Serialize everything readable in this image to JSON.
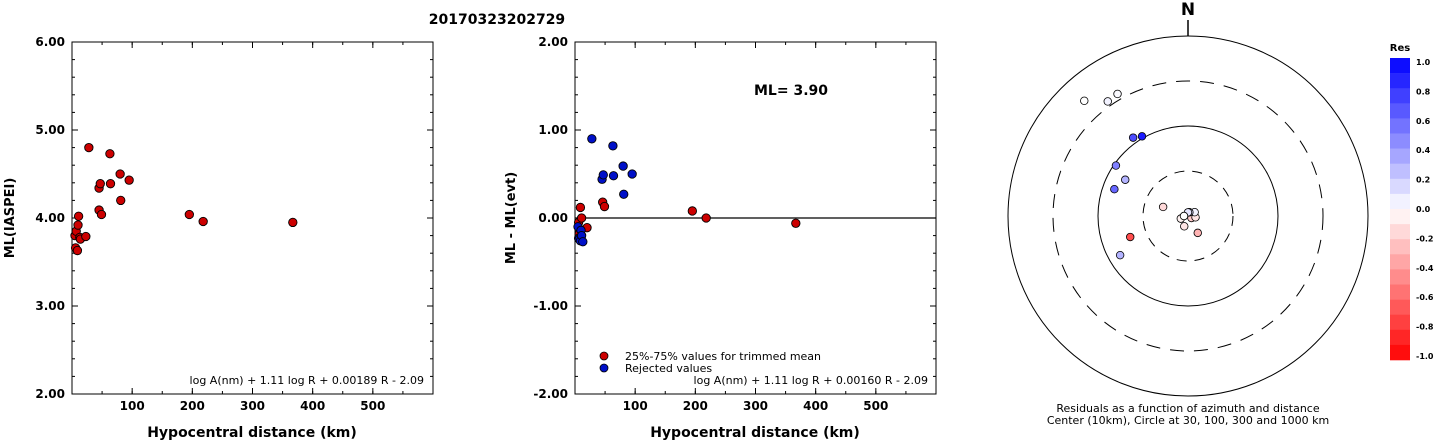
{
  "title": "20170323202729",
  "chart_data": [
    {
      "type": "scatter",
      "ylabel": "ML(IASPEI)",
      "xlabel": "Hypocentral distance (km)",
      "xlim": [
        0,
        600
      ],
      "ylim": [
        2.0,
        6.0
      ],
      "x_ticks": [
        100,
        200,
        300,
        400,
        500
      ],
      "y_ticks": [
        "2.00",
        "3.00",
        "4.00",
        "5.00",
        "6.00"
      ],
      "formula": "log A(nm) + 1.11 log R + 0.00189 R - 2.09",
      "point_color": "#cc0000",
      "points": [
        [
          5,
          3.8
        ],
        [
          6,
          3.66
        ],
        [
          7,
          3.85
        ],
        [
          9,
          3.63
        ],
        [
          10,
          3.92
        ],
        [
          11,
          4.02
        ],
        [
          13,
          3.78
        ],
        [
          14,
          3.76
        ],
        [
          23,
          3.79
        ],
        [
          28,
          4.8
        ],
        [
          45,
          4.09
        ],
        [
          45,
          4.34
        ],
        [
          47,
          4.39
        ],
        [
          49,
          4.04
        ],
        [
          63,
          4.73
        ],
        [
          64,
          4.39
        ],
        [
          80,
          4.5
        ],
        [
          81,
          4.2
        ],
        [
          95,
          4.43
        ],
        [
          195,
          4.04
        ],
        [
          218,
          3.96
        ],
        [
          367,
          3.95
        ]
      ]
    },
    {
      "type": "scatter",
      "ylabel": "ML - ML(evt)",
      "xlabel": "Hypocentral distance (km)",
      "xlim": [
        0,
        600
      ],
      "ylim": [
        -2.0,
        2.0
      ],
      "x_ticks": [
        100,
        200,
        300,
        400,
        500
      ],
      "y_ticks": [
        "-2.00",
        "-1.00",
        "0.00",
        "1.00",
        "2.00"
      ],
      "annotation": "ML= 3.90",
      "formula": "log A(nm) + 1.11 log R + 0.00160 R - 2.09",
      "legend": [
        {
          "label": "25%-75% values for trimmed mean",
          "color": "#cc0000"
        },
        {
          "label": "Rejected values",
          "color": "#0010c8"
        }
      ],
      "series": [
        {
          "color": "#cc0000",
          "points": [
            [
              6,
              -0.05
            ],
            [
              7,
              -0.18
            ],
            [
              9,
              0.12
            ],
            [
              11,
              0.0
            ],
            [
              20,
              -0.11
            ],
            [
              46,
              0.18
            ],
            [
              49,
              0.13
            ],
            [
              195,
              0.08
            ],
            [
              218,
              0.0
            ],
            [
              367,
              -0.06
            ]
          ]
        },
        {
          "color": "#0010c8",
          "points": [
            [
              5,
              -0.1
            ],
            [
              6,
              -0.23
            ],
            [
              7,
              -0.24
            ],
            [
              9,
              -0.26
            ],
            [
              10,
              -0.14
            ],
            [
              11,
              -0.2
            ],
            [
              13,
              -0.27
            ],
            [
              28,
              0.9
            ],
            [
              45,
              0.44
            ],
            [
              47,
              0.49
            ],
            [
              63,
              0.82
            ],
            [
              64,
              0.48
            ],
            [
              80,
              0.59
            ],
            [
              81,
              0.27
            ],
            [
              95,
              0.5
            ]
          ]
        }
      ]
    },
    {
      "type": "polar-scatter",
      "north_label": "N",
      "caption_line1": "Residuals as a function of azimuth and distance",
      "caption_line2": "Center (10km), Circle at 30, 100, 300 and 1000 km",
      "colorbar_title": "Res",
      "colorbar_ticks": [
        "1.0",
        "0.8",
        "0.6",
        "0.4",
        "0.2",
        "0.0",
        "-0.2",
        "-0.4",
        "-0.6",
        "-0.8",
        "-1.0"
      ],
      "stations": [
        {
          "az": 290,
          "dist": 70,
          "res": 0.6
        },
        {
          "az": 305,
          "dist": 90,
          "res": 0.5
        },
        {
          "az": 325,
          "dist": 110,
          "res": 0.7
        },
        {
          "az": 330,
          "dist": 100,
          "res": 0.9
        },
        {
          "az": 300,
          "dist": 60,
          "res": 0.3
        },
        {
          "az": 250,
          "dist": 45,
          "res": -0.7
        },
        {
          "az": 240,
          "dist": 70,
          "res": 0.3
        },
        {
          "az": 325,
          "dist": 350,
          "res": 0.05
        },
        {
          "az": 318,
          "dist": 520,
          "res": 0.0
        },
        {
          "az": 330,
          "dist": 360,
          "res": 0.02
        },
        {
          "az": 290,
          "dist": 18,
          "res": -0.15
        },
        {
          "az": 200,
          "dist": 12,
          "res": -0.1
        },
        {
          "az": 120,
          "dist": 10,
          "res": -0.2
        },
        {
          "az": 100,
          "dist": 11,
          "res": -0.1
        },
        {
          "az": 60,
          "dist": 11,
          "res": 0.05
        },
        {
          "az": 20,
          "dist": 10,
          "res": 0.15
        },
        {
          "az": 250,
          "dist": 11,
          "res": -0.05
        },
        {
          "az": 150,
          "dist": 15,
          "res": -0.3
        },
        {
          "az": 0,
          "dist": 9,
          "res": 0.1
        },
        {
          "az": 270,
          "dist": 10,
          "res": 0.0
        }
      ]
    }
  ]
}
